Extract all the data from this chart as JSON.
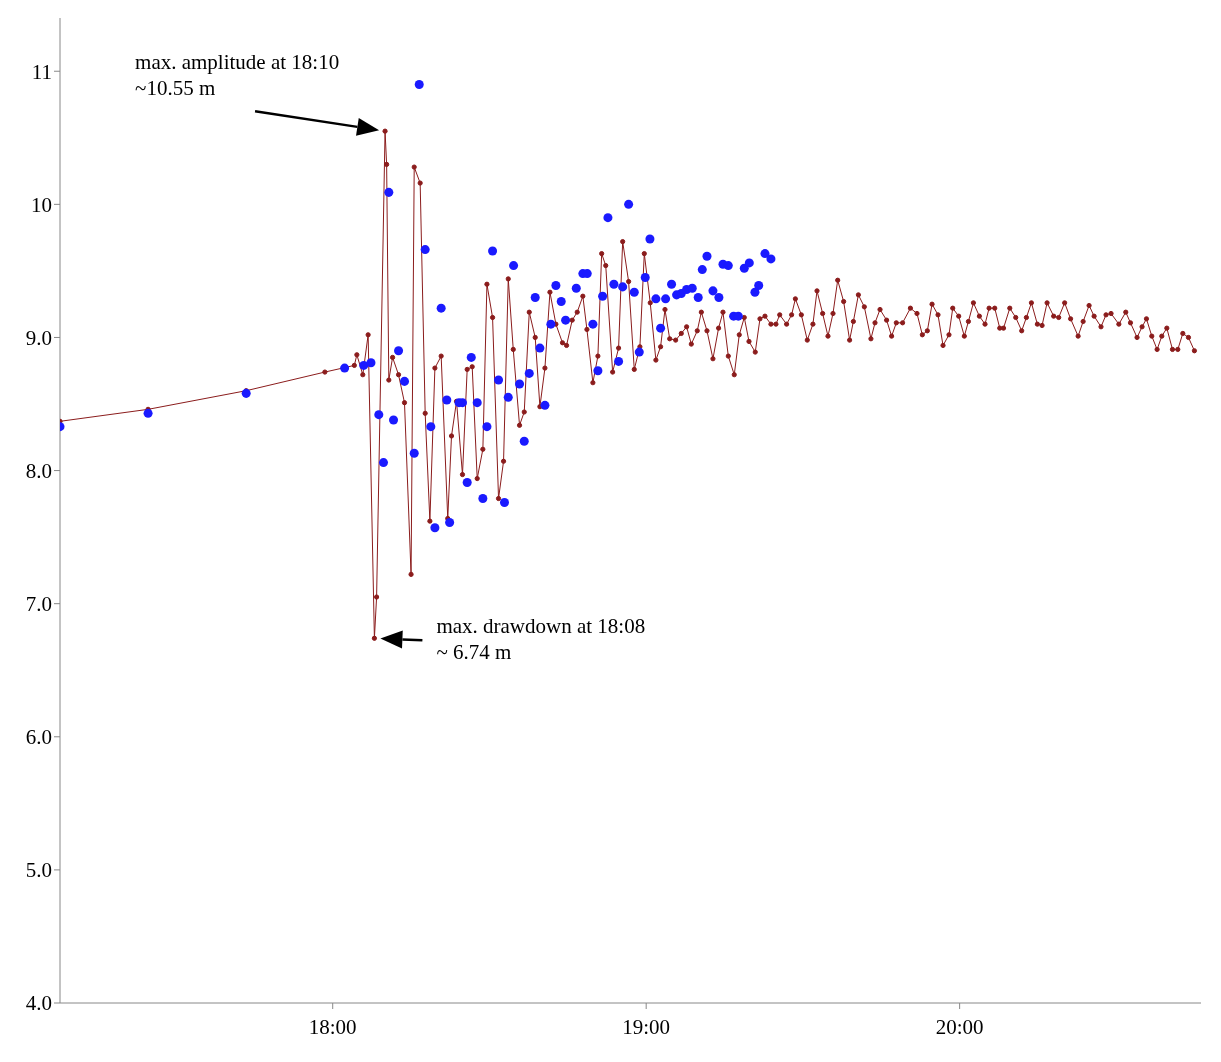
{
  "chart_data": {
    "type": "line",
    "xlim": [
      17.13,
      20.77
    ],
    "ylim": [
      4,
      11.4
    ],
    "xticks": [
      {
        "value": 18,
        "label": "18:00"
      },
      {
        "value": 19,
        "label": "19:00"
      },
      {
        "value": 20,
        "label": "20:00"
      }
    ],
    "yticks": [
      {
        "value": 4,
        "label": "4.0"
      },
      {
        "value": 5,
        "label": "5.0"
      },
      {
        "value": 6,
        "label": "6.0"
      },
      {
        "value": 7,
        "label": "7.0"
      },
      {
        "value": 8,
        "label": "8.0"
      },
      {
        "value": 9,
        "label": "9.0"
      },
      10,
      11
    ],
    "grid": false,
    "legend": false,
    "marker": "circle",
    "line_style": "solid",
    "annotations": [
      {
        "text": "max. amplitude at 18:10\n~10.55 m",
        "x": 18.167,
        "y": 10.55
      },
      {
        "text": "max. drawdown at 18:08\n~ 6.74 m",
        "x": 18.133,
        "y": 6.74
      }
    ],
    "series": [
      {
        "color": "#8b1c1c",
        "x": [
          17.13,
          17.411,
          17.724,
          17.975,
          18.069,
          18.077,
          18.096,
          18.113,
          18.133,
          18.14,
          18.167,
          18.172,
          18.179,
          18.191,
          18.21,
          18.229,
          18.25,
          18.26,
          18.279,
          18.295,
          18.31,
          18.326,
          18.346,
          18.367,
          18.379,
          18.395,
          18.414,
          18.429,
          18.445,
          18.461,
          18.479,
          18.492,
          18.51,
          18.529,
          18.545,
          18.56,
          18.576,
          18.596,
          18.611,
          18.627,
          18.646,
          18.661,
          18.677,
          18.693,
          18.712,
          18.733,
          18.746,
          18.764,
          18.78,
          18.798,
          18.811,
          18.83,
          18.846,
          18.858,
          18.871,
          18.893,
          18.912,
          18.925,
          18.944,
          18.962,
          18.98,
          18.994,
          19.013,
          19.031,
          19.046,
          19.06,
          19.075,
          19.094,
          19.112,
          19.129,
          19.144,
          19.163,
          19.176,
          19.194,
          19.213,
          19.231,
          19.245,
          19.262,
          19.281,
          19.297,
          19.313,
          19.328,
          19.348,
          19.363,
          19.379,
          19.398,
          19.414,
          19.426,
          19.448,
          19.464,
          19.476,
          19.495,
          19.514,
          19.532,
          19.545,
          19.563,
          19.58,
          19.596,
          19.611,
          19.63,
          19.649,
          19.661,
          19.677,
          19.696,
          19.717,
          19.73,
          19.746,
          19.767,
          19.783,
          19.798,
          19.818,
          19.843,
          19.864,
          19.881,
          19.897,
          19.912,
          19.931,
          19.947,
          19.966,
          19.978,
          19.997,
          20.015,
          20.028,
          20.044,
          20.063,
          20.081,
          20.094,
          20.112,
          20.128,
          20.14,
          20.16,
          20.179,
          20.198,
          20.213,
          20.229,
          20.248,
          20.263,
          20.279,
          20.3,
          20.316,
          20.335,
          20.354,
          20.378,
          20.394,
          20.413,
          20.429,
          20.451,
          20.467,
          20.483,
          20.508,
          20.53,
          20.545,
          20.566,
          20.582,
          20.596,
          20.613,
          20.63,
          20.645,
          20.661,
          20.679,
          20.696,
          20.712,
          20.73,
          20.749
        ],
        "values": [
          8.37,
          8.46,
          8.6,
          8.74,
          8.79,
          8.87,
          8.72,
          9.02,
          6.74,
          7.05,
          10.55,
          10.3,
          8.68,
          8.85,
          8.72,
          8.51,
          7.22,
          10.28,
          10.16,
          8.43,
          7.62,
          8.77,
          8.86,
          7.64,
          8.26,
          8.52,
          7.97,
          8.76,
          8.78,
          7.94,
          8.16,
          9.4,
          9.15,
          7.79,
          8.07,
          9.44,
          8.91,
          8.34,
          8.44,
          9.19,
          9.0,
          8.48,
          8.77,
          9.34,
          9.1,
          8.96,
          8.94,
          9.13,
          9.19,
          9.31,
          9.06,
          8.66,
          8.86,
          9.63,
          9.54,
          8.74,
          8.92,
          9.72,
          9.42,
          8.76,
          8.93,
          9.63,
          9.26,
          8.83,
          8.93,
          9.21,
          8.99,
          8.98,
          9.03,
          9.08,
          8.95,
          9.05,
          9.19,
          9.05,
          8.84,
          9.07,
          9.19,
          8.86,
          8.72,
          9.02,
          9.15,
          8.97,
          8.89,
          9.14,
          9.16,
          9.1,
          9.1,
          9.17,
          9.1,
          9.17,
          9.29,
          9.17,
          8.98,
          9.1,
          9.35,
          9.18,
          9.01,
          9.18,
          9.43,
          9.27,
          8.98,
          9.12,
          9.32,
          9.23,
          8.99,
          9.11,
          9.21,
          9.13,
          9.01,
          9.11,
          9.11,
          9.22,
          9.18,
          9.02,
          9.05,
          9.25,
          9.17,
          8.94,
          9.02,
          9.22,
          9.16,
          9.01,
          9.12,
          9.26,
          9.16,
          9.1,
          9.22,
          9.22,
          9.07,
          9.07,
          9.22,
          9.15,
          9.05,
          9.15,
          9.26,
          9.1,
          9.09,
          9.26,
          9.16,
          9.15,
          9.26,
          9.14,
          9.01,
          9.12,
          9.24,
          9.16,
          9.08,
          9.17,
          9.18,
          9.1,
          9.19,
          9.11,
          9.0,
          9.08,
          9.14,
          9.01,
          8.91,
          9.01,
          9.07,
          8.91,
          8.91,
          9.03,
          9.0,
          8.9
        ]
      },
      {
        "type": "scatter",
        "color": "#1a1aff",
        "x": [
          17.13,
          17.411,
          17.724,
          18.038,
          18.099,
          18.122,
          18.147,
          18.162,
          18.179,
          18.194,
          18.21,
          18.229,
          18.26,
          18.276,
          18.295,
          18.313,
          18.326,
          18.346,
          18.364,
          18.373,
          18.403,
          18.414,
          18.429,
          18.442,
          18.461,
          18.479,
          18.492,
          18.51,
          18.529,
          18.548,
          18.56,
          18.577,
          18.596,
          18.611,
          18.627,
          18.646,
          18.661,
          18.677,
          18.696,
          18.712,
          18.729,
          18.743,
          18.777,
          18.798,
          18.812,
          18.83,
          18.846,
          18.861,
          18.878,
          18.897,
          18.912,
          18.925,
          18.944,
          18.962,
          18.978,
          18.997,
          19.012,
          19.031,
          19.046,
          19.062,
          19.081,
          19.097,
          19.112,
          19.129,
          19.147,
          19.166,
          19.179,
          19.194,
          19.213,
          19.232,
          19.245,
          19.262,
          19.279,
          19.294,
          19.313,
          19.329,
          19.347,
          19.359,
          19.379,
          19.398
        ],
        "values": [
          8.33,
          8.43,
          8.58,
          8.77,
          8.79,
          8.81,
          8.42,
          8.06,
          10.09,
          8.38,
          8.9,
          8.67,
          8.13,
          10.9,
          9.66,
          8.33,
          7.57,
          9.22,
          8.53,
          7.61,
          8.51,
          8.51,
          7.91,
          8.85,
          8.51,
          7.79,
          8.33,
          9.65,
          8.68,
          7.76,
          8.55,
          9.54,
          8.65,
          8.22,
          8.73,
          9.3,
          8.92,
          8.49,
          9.1,
          9.39,
          9.27,
          9.13,
          9.37,
          9.48,
          9.48,
          9.1,
          8.75,
          9.31,
          9.9,
          9.4,
          8.82,
          9.38,
          10.0,
          9.34,
          8.89,
          9.45,
          9.74,
          9.29,
          9.07,
          9.29,
          9.4,
          9.32,
          9.33,
          9.36,
          9.37,
          9.3,
          9.51,
          9.61,
          9.35,
          9.3,
          9.55,
          9.54,
          9.16,
          9.16,
          9.52,
          9.56,
          9.34,
          9.39,
          9.63,
          9.59
        ]
      }
    ]
  }
}
